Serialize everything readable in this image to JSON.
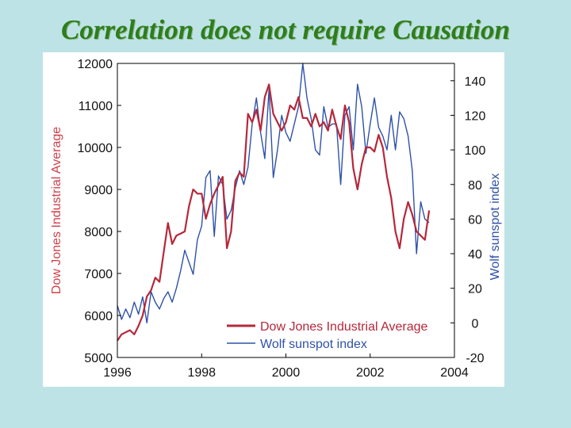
{
  "slide": {
    "title": "Correlation does not require Causation"
  },
  "colors": {
    "background": "#bde3e6",
    "title": "#2e7d1e",
    "dow": "#b5283a",
    "sunspot": "#2f52a8",
    "axis_left_label": "#d0414a",
    "axis_right_label": "#2f52a8"
  },
  "chart_data": {
    "type": "line",
    "title": "",
    "xlabel": "",
    "ylabel_left": "Dow Jones Industrial Average",
    "ylabel_right": "Wolf sunspot index",
    "xlim": [
      1996,
      2004
    ],
    "ylim_left": [
      5000,
      12000
    ],
    "ylim_right": [
      -20,
      150
    ],
    "x_ticks": [
      "1996",
      "1998",
      "2000",
      "2002",
      "2004"
    ],
    "y_left_ticks": [
      "5000",
      "6000",
      "7000",
      "8000",
      "9000",
      "10000",
      "11000",
      "12000"
    ],
    "y_right_ticks": [
      "-20",
      "0",
      "20",
      "40",
      "60",
      "80",
      "100",
      "120",
      "140"
    ],
    "grid": false,
    "legend_position": "bottom-right",
    "series": [
      {
        "name": "Dow Jones Industrial Average",
        "axis": "left",
        "x": [
          1996.0,
          1996.1,
          1996.2,
          1996.3,
          1996.4,
          1996.5,
          1996.6,
          1996.7,
          1996.8,
          1996.9,
          1997.0,
          1997.1,
          1997.2,
          1997.3,
          1997.4,
          1997.5,
          1997.6,
          1997.7,
          1997.8,
          1997.9,
          1998.0,
          1998.1,
          1998.2,
          1998.3,
          1998.4,
          1998.5,
          1998.6,
          1998.7,
          1998.8,
          1998.9,
          1999.0,
          1999.1,
          1999.2,
          1999.3,
          1999.4,
          1999.5,
          1999.6,
          1999.7,
          1999.8,
          1999.9,
          2000.0,
          2000.1,
          2000.2,
          2000.3,
          2000.4,
          2000.5,
          2000.6,
          2000.7,
          2000.8,
          2000.9,
          2001.0,
          2001.1,
          2001.2,
          2001.3,
          2001.4,
          2001.5,
          2001.6,
          2001.7,
          2001.8,
          2001.9,
          2002.0,
          2002.1,
          2002.2,
          2002.3,
          2002.4,
          2002.5,
          2002.6,
          2002.7,
          2002.8,
          2002.9,
          2003.0,
          2003.1,
          2003.2,
          2003.3,
          2003.4
        ],
        "values": [
          5400,
          5550,
          5600,
          5650,
          5550,
          5750,
          6000,
          6450,
          6600,
          6900,
          6800,
          7500,
          8200,
          7700,
          7900,
          7950,
          8000,
          8600,
          9000,
          8900,
          8900,
          8300,
          8650,
          8900,
          9100,
          9300,
          7600,
          8000,
          9200,
          9400,
          9300,
          10800,
          10600,
          10900,
          10400,
          11200,
          11500,
          10800,
          10600,
          10400,
          10600,
          11000,
          10900,
          11200,
          10700,
          10700,
          10500,
          10800,
          10500,
          10600,
          10400,
          10900,
          10500,
          10200,
          11000,
          10600,
          9500,
          9000,
          9600,
          10000,
          10000,
          9900,
          10300,
          10000,
          9300,
          8800,
          8000,
          7600,
          8300,
          8700,
          8400,
          8000,
          7900,
          7800,
          8500
        ]
      },
      {
        "name": "Wolf sunspot index",
        "axis": "right",
        "x": [
          1996.0,
          1996.1,
          1996.2,
          1996.3,
          1996.4,
          1996.5,
          1996.6,
          1996.7,
          1996.8,
          1996.9,
          1997.0,
          1997.1,
          1997.2,
          1997.3,
          1997.4,
          1997.5,
          1997.6,
          1997.7,
          1997.8,
          1997.9,
          1998.0,
          1998.1,
          1998.2,
          1998.3,
          1998.4,
          1998.5,
          1998.6,
          1998.7,
          1998.8,
          1998.9,
          1999.0,
          1999.1,
          1999.2,
          1999.3,
          1999.4,
          1999.5,
          1999.6,
          1999.7,
          1999.8,
          1999.9,
          2000.0,
          2000.1,
          2000.2,
          2000.3,
          2000.4,
          2000.5,
          2000.6,
          2000.7,
          2000.8,
          2000.9,
          2001.0,
          2001.1,
          2001.2,
          2001.3,
          2001.4,
          2001.5,
          2001.6,
          2001.7,
          2001.8,
          2001.9,
          2002.0,
          2002.1,
          2002.2,
          2002.3,
          2002.4,
          2002.5,
          2002.6,
          2002.7,
          2002.8,
          2002.9,
          2003.0,
          2003.1,
          2003.2,
          2003.3,
          2003.4
        ],
        "values": [
          10,
          2,
          8,
          3,
          12,
          5,
          15,
          0,
          18,
          12,
          8,
          14,
          18,
          12,
          20,
          30,
          42,
          35,
          28,
          48,
          56,
          84,
          88,
          50,
          85,
          80,
          60,
          65,
          78,
          88,
          80,
          90,
          115,
          130,
          110,
          95,
          135,
          84,
          100,
          120,
          110,
          105,
          115,
          125,
          150,
          130,
          118,
          100,
          97,
          125,
          113,
          115,
          115,
          80,
          120,
          125,
          100,
          138,
          125,
          98,
          115,
          130,
          113,
          108,
          100,
          120,
          100,
          122,
          118,
          108,
          88,
          40,
          70,
          60,
          58
        ]
      }
    ]
  }
}
